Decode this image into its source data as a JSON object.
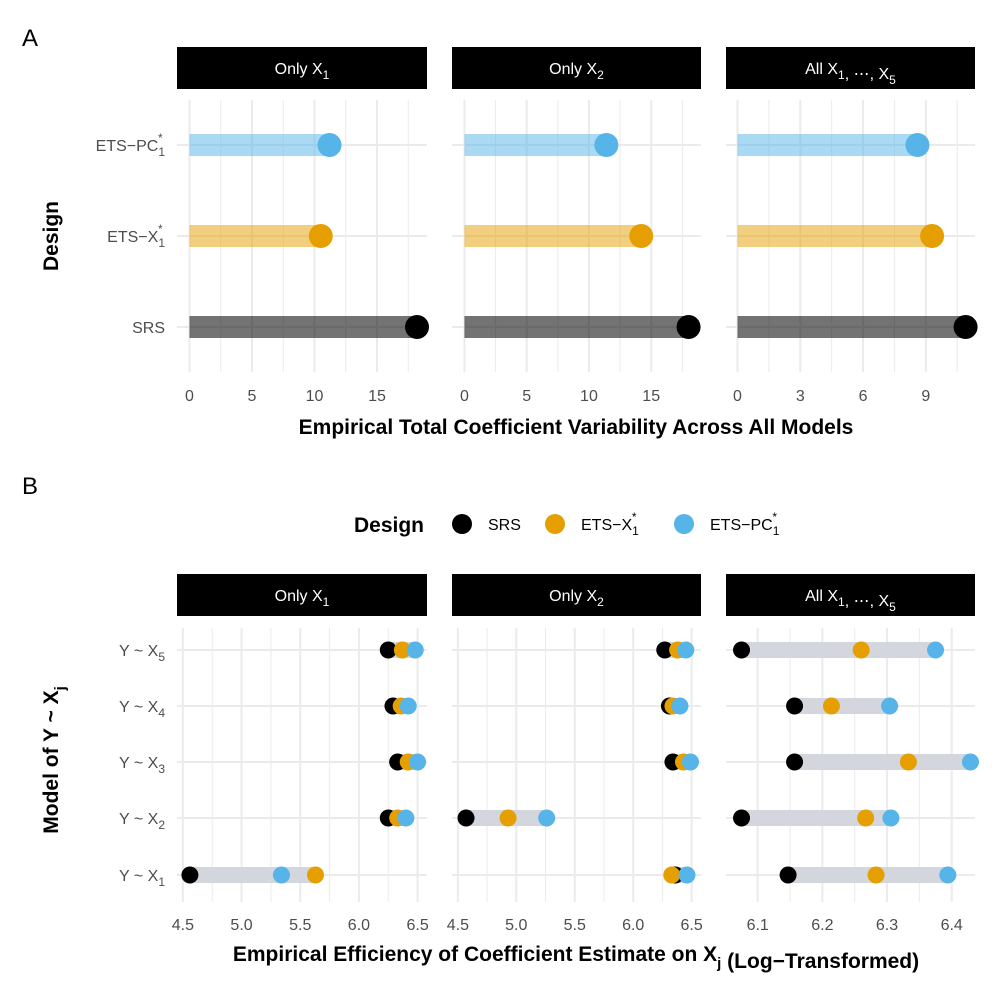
{
  "colors": {
    "SRS": "#000000",
    "ETS-X1*": "#E69F00",
    "ETS-PC1*": "#56B4E9",
    "strip_bg": "#000000",
    "strip_text": "#ffffff",
    "grid": "#ebebeb",
    "range_bar": "#d3d6dc"
  },
  "chart_data": [
    {
      "panel": "A",
      "type": "bar",
      "subtype": "lollipop",
      "xlabel": "Empirical Total Coefficient Variability Across All Models",
      "ylabel": "Design",
      "categories": [
        "SRS",
        "ETS-X1*",
        "ETS-PC1*"
      ],
      "category_display": [
        {
          "main": "SRS",
          "sub": "",
          "sup": ""
        },
        {
          "main": "ETS−X",
          "sub": "1",
          "sup": "*"
        },
        {
          "main": "ETS−PC",
          "sub": "1",
          "sup": "*"
        }
      ],
      "facets": [
        {
          "strip": {
            "main": "Only X",
            "sub": "1",
            "rest": ""
          },
          "xlim": [
            -1,
            19
          ],
          "ticks": [
            0,
            5,
            10,
            15
          ],
          "minor": [
            2.5,
            7.5,
            12.5,
            17.5
          ],
          "values": {
            "SRS": 18.2,
            "ETS-X1*": 10.5,
            "ETS-PC1*": 11.2
          }
        },
        {
          "strip": {
            "main": "Only X",
            "sub": "2",
            "rest": ""
          },
          "xlim": [
            -1,
            19
          ],
          "ticks": [
            0,
            5,
            10,
            15
          ],
          "minor": [
            2.5,
            7.5,
            12.5,
            17.5
          ],
          "values": {
            "SRS": 18.0,
            "ETS-X1*": 14.2,
            "ETS-PC1*": 11.4
          }
        },
        {
          "strip": {
            "main": "All X",
            "sub": "1",
            "rest": ", ⋯, X",
            "sub2": "5"
          },
          "xlim": [
            -0.55,
            11.35
          ],
          "ticks": [
            0,
            3,
            6,
            9
          ],
          "minor": [
            1.5,
            4.5,
            7.5,
            10.5
          ],
          "values": {
            "SRS": 10.9,
            "ETS-X1*": 9.3,
            "ETS-PC1*": 8.6
          }
        }
      ]
    },
    {
      "panel": "B",
      "type": "scatter",
      "subtype": "dumbbell",
      "xlabel": {
        "main": "Empirical Efficiency of Coefficient Estimate on X",
        "sub": "j",
        "rest": " (Log−Transformed)"
      },
      "ylabel": {
        "main": "Model of Y ~ X",
        "sub": "j"
      },
      "legend": {
        "title": "Design",
        "position": "top",
        "entries": [
          {
            "key": "SRS",
            "main": "SRS",
            "sub": "",
            "sup": ""
          },
          {
            "key": "ETS-X1*",
            "main": "ETS−X",
            "sub": "1",
            "sup": "*"
          },
          {
            "key": "ETS-PC1*",
            "main": "ETS−PC",
            "sub": "1",
            "sup": "*"
          }
        ]
      },
      "categories": [
        "Y ~ X1",
        "Y ~ X2",
        "Y ~ X3",
        "Y ~ X4",
        "Y ~ X5"
      ],
      "category_display": [
        {
          "main": "Y ~ X",
          "sub": "1"
        },
        {
          "main": "Y ~ X",
          "sub": "2"
        },
        {
          "main": "Y ~ X",
          "sub": "3"
        },
        {
          "main": "Y ~ X",
          "sub": "4"
        },
        {
          "main": "Y ~ X",
          "sub": "5"
        }
      ],
      "facets": [
        {
          "strip": {
            "main": "Only X",
            "sub": "1",
            "rest": ""
          },
          "xlim": [
            4.45,
            6.58
          ],
          "ticks": [
            4.5,
            5.0,
            5.5,
            6.0,
            6.5
          ],
          "tick_labels": [
            "4.5",
            "5.0",
            "5.5",
            "6.0",
            "6.5"
          ],
          "minor": [
            4.75,
            5.25,
            5.75,
            6.25
          ],
          "series": {
            "SRS": [
              4.56,
              6.25,
              6.33,
              6.29,
              6.25
            ],
            "ETS-X1*": [
              5.63,
              6.33,
              6.42,
              6.36,
              6.37
            ],
            "ETS-PC1*": [
              5.34,
              6.4,
              6.5,
              6.42,
              6.48
            ]
          }
        },
        {
          "strip": {
            "main": "Only X",
            "sub": "2",
            "rest": ""
          },
          "xlim": [
            4.45,
            6.58
          ],
          "ticks": [
            4.5,
            5.0,
            5.5,
            6.0,
            6.5
          ],
          "tick_labels": [
            "4.5",
            "5.0",
            "5.5",
            "6.0",
            "6.5"
          ],
          "minor": [
            4.75,
            5.25,
            5.75,
            6.25
          ],
          "series": {
            "SRS": [
              6.36,
              4.57,
              6.34,
              6.31,
              6.27
            ],
            "ETS-X1*": [
              6.33,
              4.93,
              6.43,
              6.34,
              6.38
            ],
            "ETS-PC1*": [
              6.46,
              5.26,
              6.49,
              6.4,
              6.45
            ]
          }
        },
        {
          "strip": {
            "main": "All X",
            "sub": "1",
            "rest": ", ⋯, X",
            "sub2": "5"
          },
          "xlim": [
            6.051,
            6.436
          ],
          "ticks": [
            6.1,
            6.2,
            6.3,
            6.4
          ],
          "tick_labels": [
            "6.1",
            "6.2",
            "6.3",
            "6.4"
          ],
          "minor": [
            6.15,
            6.25,
            6.35
          ],
          "series": {
            "SRS": [
              6.147,
              6.075,
              6.157,
              6.157,
              6.075
            ],
            "ETS-X1*": [
              6.283,
              6.267,
              6.333,
              6.214,
              6.26
            ],
            "ETS-PC1*": [
              6.394,
              6.306,
              6.429,
              6.304,
              6.375
            ]
          }
        }
      ]
    }
  ],
  "panel_labels": [
    "A",
    "B"
  ]
}
